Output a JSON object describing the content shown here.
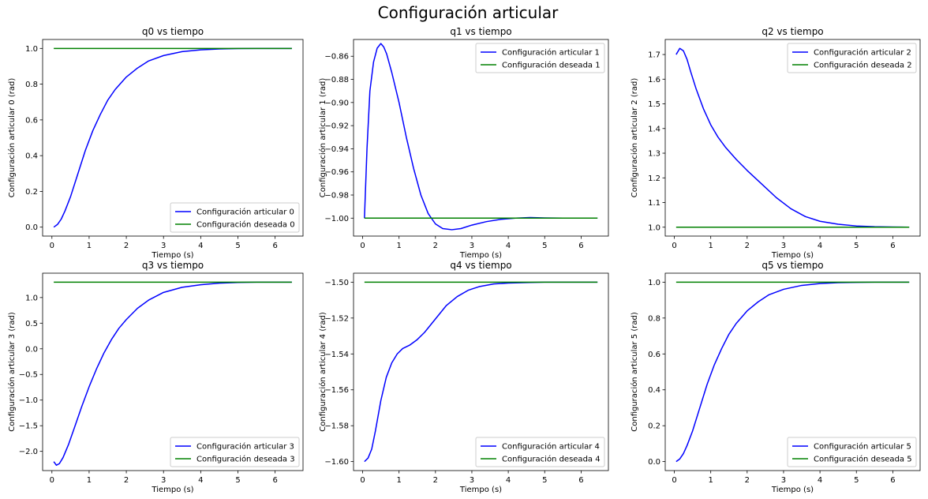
{
  "figure": {
    "title": "Configuración articular"
  },
  "chart_data": [
    {
      "type": "line",
      "title": "q0 vs tiempo",
      "xlabel": "Tiempo (s)",
      "ylabel": "Configuración articular 0 (rad)",
      "xlim": [
        -0.25,
        6.75
      ],
      "ylim": [
        -0.05,
        1.05
      ],
      "xticks": [
        0,
        1,
        2,
        3,
        4,
        5,
        6
      ],
      "yticks": [
        0.0,
        0.2,
        0.4,
        0.6,
        0.8,
        1.0
      ],
      "ytick_labels": [
        "0.0",
        "0.2",
        "0.4",
        "0.6",
        "0.8",
        "1.0"
      ],
      "legend_position": "lower right",
      "series": [
        {
          "name": "Configuración articular 0",
          "color": "#0000ff",
          "x": [
            0.05,
            0.15,
            0.25,
            0.35,
            0.5,
            0.7,
            0.9,
            1.1,
            1.3,
            1.5,
            1.7,
            2.0,
            2.3,
            2.6,
            3.0,
            3.5,
            4.0,
            4.5,
            5.0,
            5.5,
            6.0,
            6.45
          ],
          "y": [
            0.0,
            0.015,
            0.045,
            0.09,
            0.17,
            0.3,
            0.43,
            0.54,
            0.63,
            0.71,
            0.77,
            0.84,
            0.89,
            0.93,
            0.96,
            0.982,
            0.992,
            0.997,
            0.999,
            1.0,
            1.0,
            1.0
          ]
        },
        {
          "name": "Configuración deseada 0",
          "color": "#008000",
          "x": [
            0.05,
            6.45
          ],
          "y": [
            1.0,
            1.0
          ]
        }
      ]
    },
    {
      "type": "line",
      "title": "q1 vs tiempo",
      "xlabel": "Tiempo (s)",
      "ylabel": "Configuración articular 1 (rad)",
      "xlim": [
        -0.25,
        6.75
      ],
      "ylim": [
        -1.0155,
        -0.8455
      ],
      "xticks": [
        0,
        1,
        2,
        3,
        4,
        5,
        6
      ],
      "yticks": [
        -1.0,
        -0.98,
        -0.96,
        -0.94,
        -0.92,
        -0.9,
        -0.88,
        -0.86
      ],
      "ytick_labels": [
        "−1.00",
        "−0.98",
        "−0.96",
        "−0.94",
        "−0.92",
        "−0.90",
        "−0.88",
        "−0.86"
      ],
      "legend_position": "upper right",
      "series": [
        {
          "name": "Configuración articular 1",
          "color": "#0000ff",
          "x": [
            0.05,
            0.12,
            0.2,
            0.3,
            0.4,
            0.5,
            0.58,
            0.66,
            0.8,
            1.0,
            1.2,
            1.4,
            1.6,
            1.8,
            2.0,
            2.2,
            2.45,
            2.7,
            3.0,
            3.4,
            3.8,
            4.2,
            4.6,
            5.0,
            5.5,
            6.0,
            6.45
          ],
          "y": [
            -1.0,
            -0.94,
            -0.89,
            -0.865,
            -0.853,
            -0.849,
            -0.852,
            -0.858,
            -0.874,
            -0.9,
            -0.93,
            -0.957,
            -0.98,
            -0.996,
            -1.005,
            -1.009,
            -1.01,
            -1.009,
            -1.006,
            -1.003,
            -1.001,
            -1.0,
            -0.9995,
            -0.9998,
            -1.0,
            -1.0,
            -1.0
          ]
        },
        {
          "name": "Configuración deseada 1",
          "color": "#008000",
          "x": [
            0.05,
            6.45
          ],
          "y": [
            -1.0,
            -1.0
          ]
        }
      ]
    },
    {
      "type": "line",
      "title": "q2 vs tiempo",
      "xlabel": "Tiempo (s)",
      "ylabel": "Configuración articular 2 (rad)",
      "xlim": [
        -0.25,
        6.75
      ],
      "ylim": [
        0.964,
        1.761
      ],
      "xticks": [
        0,
        1,
        2,
        3,
        4,
        5,
        6
      ],
      "yticks": [
        1.0,
        1.1,
        1.2,
        1.3,
        1.4,
        1.5,
        1.6,
        1.7
      ],
      "ytick_labels": [
        "1.0",
        "1.1",
        "1.2",
        "1.3",
        "1.4",
        "1.5",
        "1.6",
        "1.7"
      ],
      "legend_position": "upper right",
      "series": [
        {
          "name": "Configuración articular 2",
          "color": "#0000ff",
          "x": [
            0.05,
            0.15,
            0.25,
            0.35,
            0.45,
            0.6,
            0.8,
            1.0,
            1.2,
            1.4,
            1.7,
            2.0,
            2.4,
            2.8,
            3.2,
            3.6,
            4.0,
            4.5,
            5.0,
            5.5,
            6.0,
            6.45
          ],
          "y": [
            1.7,
            1.725,
            1.715,
            1.68,
            1.63,
            1.56,
            1.48,
            1.415,
            1.365,
            1.325,
            1.275,
            1.23,
            1.175,
            1.12,
            1.075,
            1.043,
            1.024,
            1.012,
            1.005,
            1.002,
            1.001,
            1.0
          ]
        },
        {
          "name": "Configuración deseada 2",
          "color": "#008000",
          "x": [
            0.05,
            6.45
          ],
          "y": [
            1.0,
            1.0
          ]
        }
      ]
    },
    {
      "type": "line",
      "title": "q3 vs tiempo",
      "xlabel": "Tiempo (s)",
      "ylabel": "Configuración articular 3 (rad)",
      "xlim": [
        -0.25,
        6.75
      ],
      "ylim": [
        -2.375,
        1.475
      ],
      "xticks": [
        0,
        1,
        2,
        3,
        4,
        5,
        6
      ],
      "yticks": [
        -2.0,
        -1.5,
        -1.0,
        -0.5,
        0.0,
        0.5,
        1.0
      ],
      "ytick_labels": [
        "−2.0",
        "−1.5",
        "−1.0",
        "−0.5",
        "0.0",
        "0.5",
        "1.0"
      ],
      "legend_position": "lower right",
      "series": [
        {
          "name": "Configuración articular 3",
          "color": "#0000ff",
          "x": [
            0.05,
            0.12,
            0.2,
            0.3,
            0.45,
            0.6,
            0.8,
            1.0,
            1.2,
            1.4,
            1.6,
            1.8,
            2.0,
            2.3,
            2.6,
            3.0,
            3.5,
            4.0,
            4.5,
            5.0,
            5.5,
            6.0,
            6.45
          ],
          "y": [
            -2.2,
            -2.27,
            -2.24,
            -2.12,
            -1.86,
            -1.55,
            -1.13,
            -0.74,
            -0.39,
            -0.08,
            0.18,
            0.4,
            0.57,
            0.79,
            0.95,
            1.1,
            1.2,
            1.25,
            1.28,
            1.295,
            1.3,
            1.3,
            1.3
          ]
        },
        {
          "name": "Configuración deseada 3",
          "color": "#008000",
          "x": [
            0.05,
            6.45
          ],
          "y": [
            1.3,
            1.3
          ]
        }
      ]
    },
    {
      "type": "line",
      "title": "q4 vs tiempo",
      "xlabel": "Tiempo (s)",
      "ylabel": "Configuración articular 4 (rad)",
      "xlim": [
        -0.25,
        6.75
      ],
      "ylim": [
        -1.605,
        -1.495
      ],
      "xticks": [
        0,
        1,
        2,
        3,
        4,
        5,
        6
      ],
      "yticks": [
        -1.6,
        -1.58,
        -1.56,
        -1.54,
        -1.52,
        -1.5
      ],
      "ytick_labels": [
        "−1.60",
        "−1.58",
        "−1.56",
        "−1.54",
        "−1.52",
        "−1.50"
      ],
      "legend_position": "lower right",
      "series": [
        {
          "name": "Configuración articular 4",
          "color": "#0000ff",
          "x": [
            0.05,
            0.15,
            0.25,
            0.35,
            0.5,
            0.65,
            0.8,
            0.95,
            1.1,
            1.3,
            1.5,
            1.7,
            1.9,
            2.1,
            2.3,
            2.6,
            2.9,
            3.2,
            3.6,
            4.0,
            4.5,
            5.0,
            5.5,
            6.0,
            6.45
          ],
          "y": [
            -1.6,
            -1.598,
            -1.593,
            -1.583,
            -1.566,
            -1.553,
            -1.545,
            -1.54,
            -1.537,
            -1.535,
            -1.532,
            -1.528,
            -1.523,
            -1.518,
            -1.513,
            -1.508,
            -1.5045,
            -1.5025,
            -1.501,
            -1.5005,
            -1.5002,
            -1.5,
            -1.5,
            -1.5,
            -1.5
          ]
        },
        {
          "name": "Configuración deseada 4",
          "color": "#008000",
          "x": [
            0.05,
            6.45
          ],
          "y": [
            -1.5,
            -1.5
          ]
        }
      ]
    },
    {
      "type": "line",
      "title": "q5 vs tiempo",
      "xlabel": "Tiempo (s)",
      "ylabel": "Configuración articular 5 (rad)",
      "xlim": [
        -0.25,
        6.75
      ],
      "ylim": [
        -0.05,
        1.05
      ],
      "xticks": [
        0,
        1,
        2,
        3,
        4,
        5,
        6
      ],
      "yticks": [
        0.0,
        0.2,
        0.4,
        0.6,
        0.8,
        1.0
      ],
      "ytick_labels": [
        "0.0",
        "0.2",
        "0.4",
        "0.6",
        "0.8",
        "1.0"
      ],
      "legend_position": "lower right",
      "series": [
        {
          "name": "Configuración articular 5",
          "color": "#0000ff",
          "x": [
            0.05,
            0.15,
            0.25,
            0.35,
            0.5,
            0.7,
            0.9,
            1.1,
            1.3,
            1.5,
            1.7,
            2.0,
            2.3,
            2.6,
            3.0,
            3.5,
            4.0,
            4.5,
            5.0,
            5.5,
            6.0,
            6.45
          ],
          "y": [
            0.0,
            0.015,
            0.045,
            0.09,
            0.17,
            0.3,
            0.43,
            0.54,
            0.63,
            0.71,
            0.77,
            0.84,
            0.89,
            0.93,
            0.96,
            0.982,
            0.992,
            0.997,
            0.999,
            1.0,
            1.0,
            1.0
          ]
        },
        {
          "name": "Configuración deseada 5",
          "color": "#008000",
          "x": [
            0.05,
            6.45
          ],
          "y": [
            1.0,
            1.0
          ]
        }
      ]
    }
  ]
}
